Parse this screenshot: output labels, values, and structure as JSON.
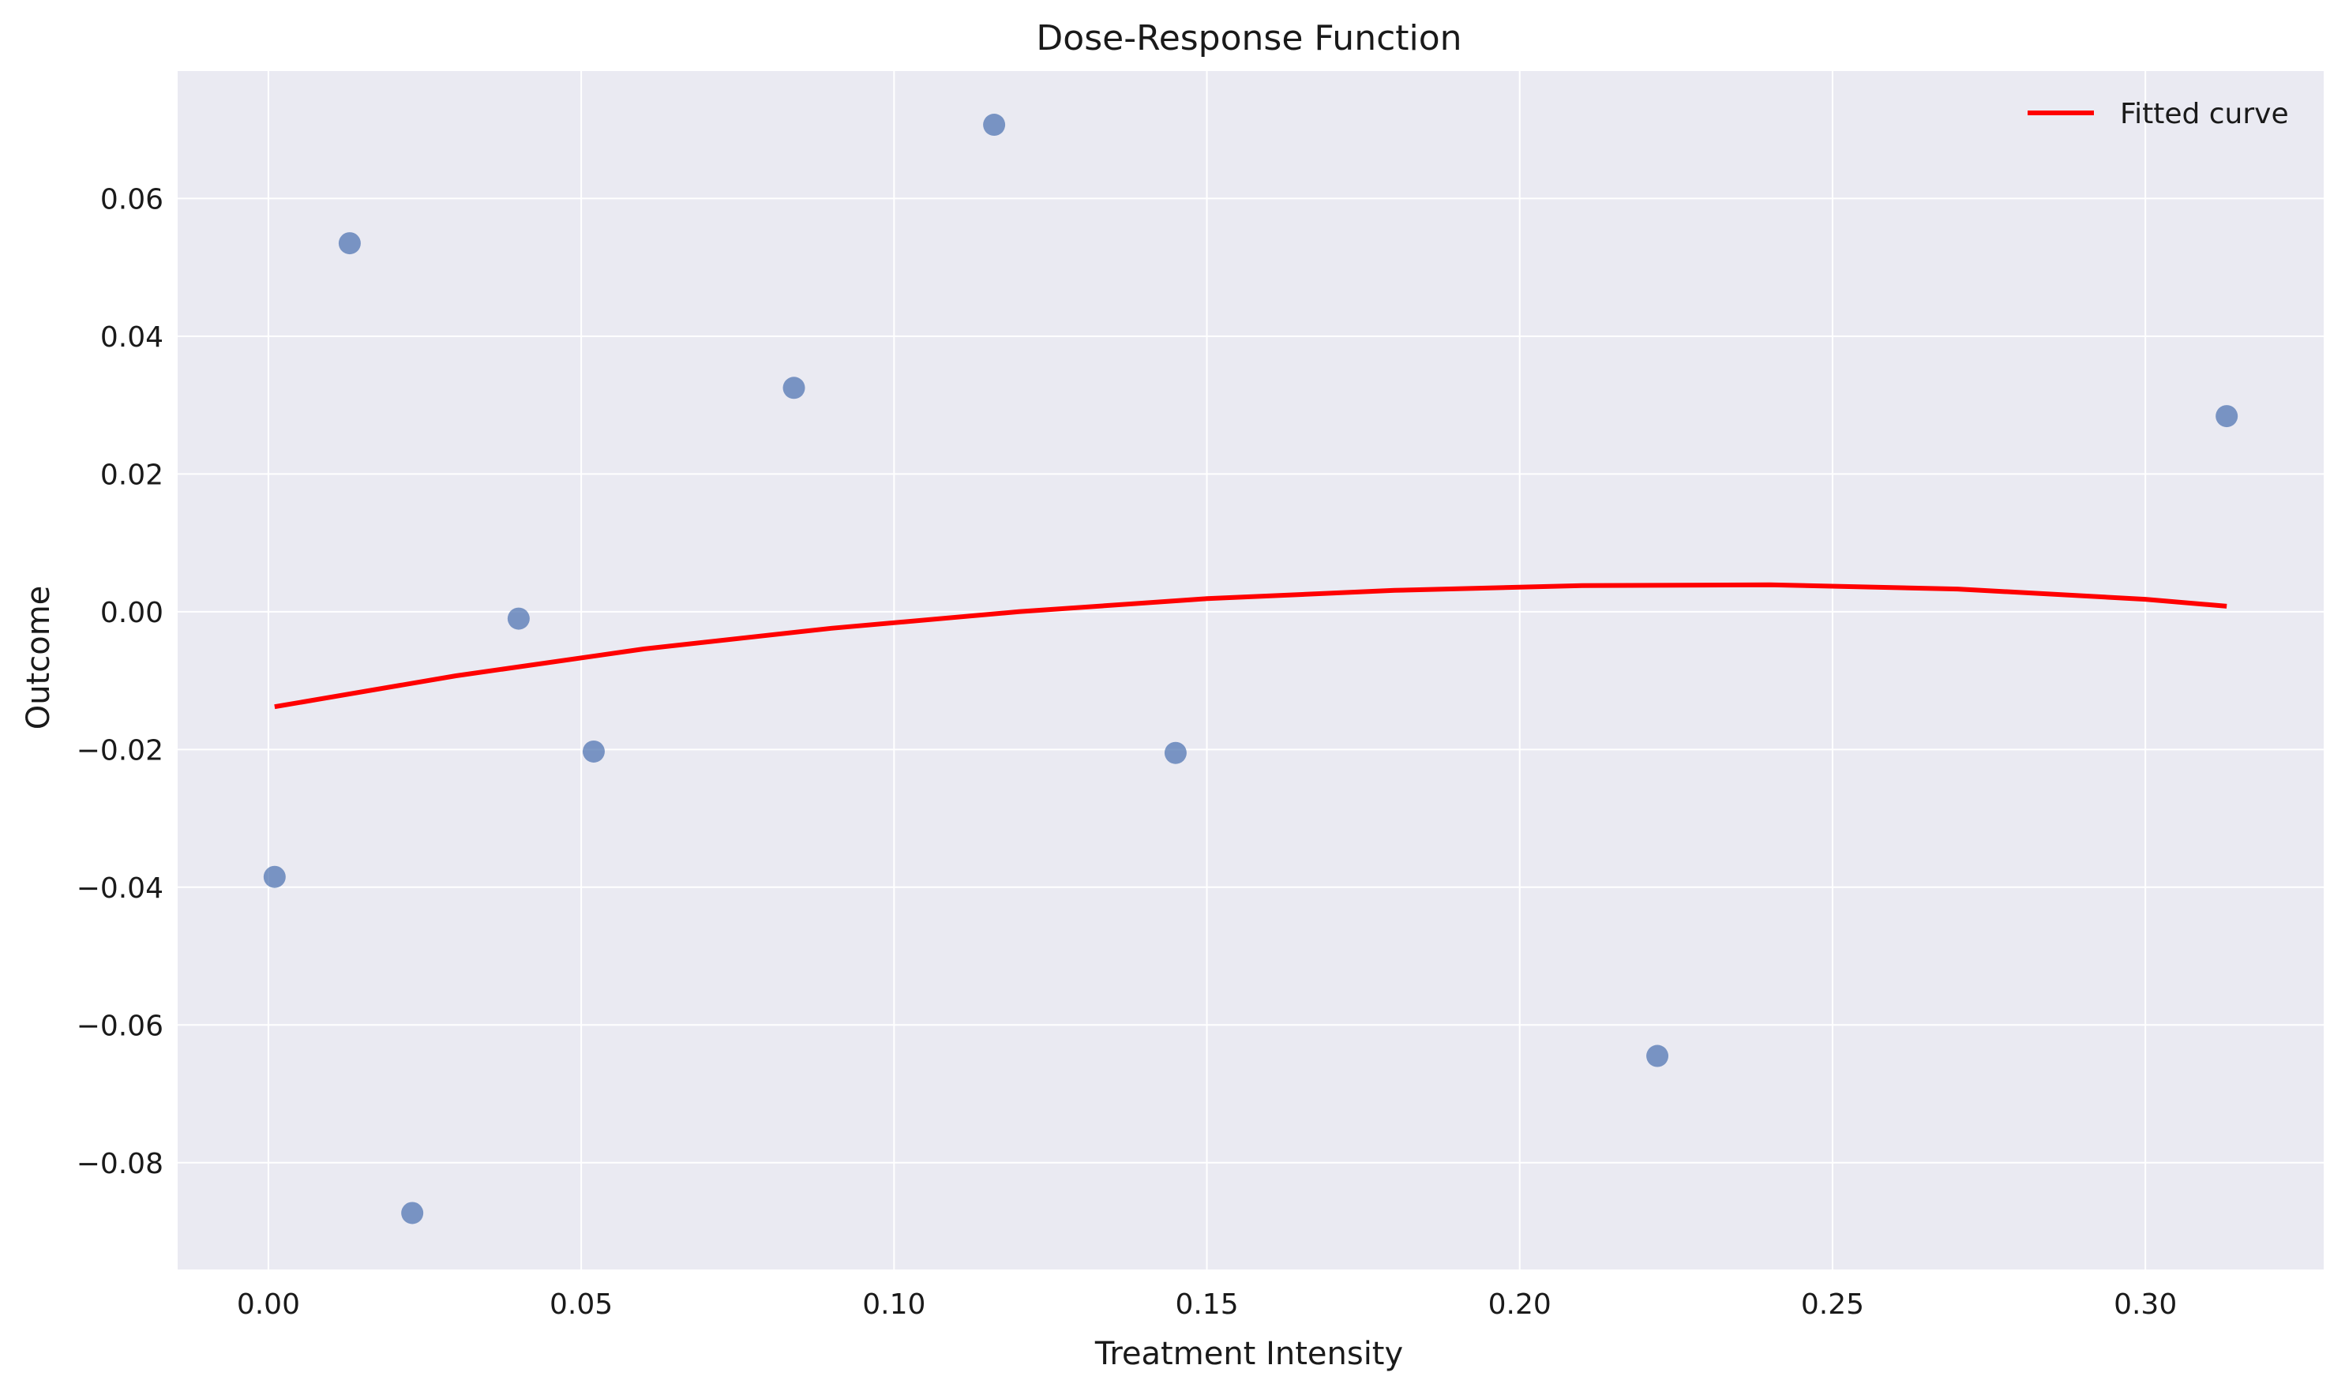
{
  "chart_data": {
    "type": "scatter",
    "title": "Dose-Response Function",
    "xlabel": "Treatment Intensity",
    "ylabel": "Outcome",
    "xlim": [
      -0.0145,
      0.3285
    ],
    "ylim": [
      -0.0955,
      0.0785
    ],
    "xticks": [
      0.0,
      0.05,
      0.1,
      0.15,
      0.2,
      0.25,
      0.3
    ],
    "xtick_labels": [
      "0.00",
      "0.05",
      "0.10",
      "0.15",
      "0.20",
      "0.25",
      "0.30"
    ],
    "yticks": [
      -0.08,
      -0.06,
      -0.04,
      -0.02,
      0.0,
      0.02,
      0.04,
      0.06
    ],
    "ytick_labels": [
      "−0.08",
      "−0.06",
      "−0.04",
      "−0.02",
      "0.00",
      "0.02",
      "0.04",
      "0.06"
    ],
    "grid": true,
    "legend": "top-right",
    "colors": {
      "background": "#eaeaf2",
      "points": "#4c72b0",
      "curve": "#ff0000",
      "grid": "#ffffff"
    },
    "points": [
      {
        "x": 0.001,
        "y": -0.0385
      },
      {
        "x": 0.013,
        "y": 0.0535
      },
      {
        "x": 0.023,
        "y": -0.0873
      },
      {
        "x": 0.04,
        "y": -0.001
      },
      {
        "x": 0.052,
        "y": -0.0203
      },
      {
        "x": 0.084,
        "y": 0.0325
      },
      {
        "x": 0.116,
        "y": 0.0707
      },
      {
        "x": 0.145,
        "y": -0.0205
      },
      {
        "x": 0.222,
        "y": -0.0645
      },
      {
        "x": 0.313,
        "y": 0.0284
      }
    ],
    "series": [
      {
        "name": "Fitted curve",
        "x": [
          0.001,
          0.03,
          0.06,
          0.09,
          0.12,
          0.15,
          0.18,
          0.21,
          0.24,
          0.27,
          0.3,
          0.313
        ],
        "y": [
          -0.0138,
          -0.0093,
          -0.0054,
          -0.0024,
          0.0,
          0.0019,
          0.0031,
          0.0038,
          0.0039,
          0.0033,
          0.0018,
          0.0008
        ]
      }
    ]
  }
}
